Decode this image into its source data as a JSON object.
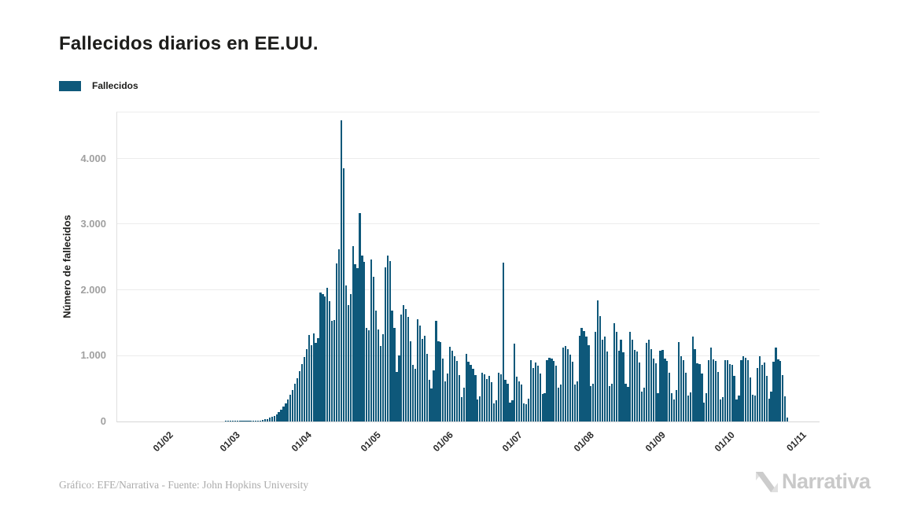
{
  "header": {
    "title": "Fallecidos diarios en EE.UU."
  },
  "legend": {
    "label": "Fallecidos",
    "swatch_color": "#0e587a"
  },
  "chart_data": {
    "type": "bar",
    "title": "Fallecidos diarios en EE.UU.",
    "xlabel": "",
    "ylabel": "Número de fallecidos",
    "ylim": [
      0,
      4730
    ],
    "grid": true,
    "legend_position": "top-left",
    "bar_color": "#0e587a",
    "series_name": "Fallecidos",
    "x_start_date": "22/01/2020",
    "frequency": "daily",
    "y_ticks": [
      {
        "value": 0,
        "label": "0"
      },
      {
        "value": 1000,
        "label": "1.000"
      },
      {
        "value": 2000,
        "label": "2.000"
      },
      {
        "value": 3000,
        "label": "3.000"
      },
      {
        "value": 4000,
        "label": "4.000"
      }
    ],
    "x_ticks": [
      {
        "label": "01/02",
        "day_offset": 10
      },
      {
        "label": "01/03",
        "day_offset": 39
      },
      {
        "label": "01/04",
        "day_offset": 70
      },
      {
        "label": "01/05",
        "day_offset": 100
      },
      {
        "label": "01/06",
        "day_offset": 131
      },
      {
        "label": "01/07",
        "day_offset": 161
      },
      {
        "label": "01/08",
        "day_offset": 192
      },
      {
        "label": "01/09",
        "day_offset": 223
      },
      {
        "label": "01/10",
        "day_offset": 253
      },
      {
        "label": "01/11",
        "day_offset": 284
      }
    ],
    "values": [
      0,
      0,
      0,
      0,
      0,
      0,
      0,
      0,
      0,
      0,
      0,
      0,
      0,
      0,
      0,
      0,
      0,
      0,
      0,
      0,
      0,
      0,
      0,
      0,
      0,
      0,
      0,
      0,
      0,
      0,
      0,
      0,
      0,
      0,
      0,
      1,
      1,
      1,
      1,
      1,
      1,
      2,
      4,
      3,
      5,
      4,
      7,
      6,
      9,
      12,
      17,
      23,
      31,
      42,
      55,
      68,
      85,
      110,
      141,
      177,
      223,
      272,
      333,
      402,
      485,
      572,
      663,
      762,
      872,
      982,
      1100,
      1320,
      1160,
      1340,
      1200,
      1270,
      1970,
      1940,
      1900,
      2035,
      1830,
      1530,
      1540,
      2410,
      2620,
      4591,
      3857,
      2070,
      1770,
      1940,
      2670,
      2400,
      2330,
      3176,
      2530,
      2430,
      1420,
      1390,
      2470,
      2200,
      1690,
      1400,
      1155,
      1324,
      2350,
      2530,
      2440,
      1687,
      1422,
      750,
      1008,
      1630,
      1772,
      1715,
      1595,
      1218,
      865,
      808,
      1552,
      1461,
      1263,
      1306,
      1035,
      638,
      500,
      774,
      1535,
      1223,
      1212,
      960,
      605,
      730,
      1134,
      1083,
      995,
      921,
      709,
      372,
      510,
      1030,
      906,
      868,
      800,
      710,
      330,
      380,
      740,
      720,
      650,
      690,
      600,
      270,
      320,
      740,
      720,
      2425,
      640,
      580,
      290,
      320,
      1180,
      680,
      610,
      560,
      270,
      260,
      350,
      930,
      810,
      900,
      850,
      730,
      420,
      430,
      940,
      970,
      960,
      920,
      850,
      510,
      560,
      1120,
      1150,
      1100,
      1020,
      910,
      560,
      610,
      1300,
      1420,
      1380,
      1290,
      1160,
      540,
      580,
      1360,
      1850,
      1600,
      1250,
      1290,
      1060,
      540,
      570,
      1500,
      1360,
      1080,
      1250,
      1050,
      580,
      530,
      1360,
      1240,
      1090,
      1070,
      900,
      450,
      510,
      1200,
      1240,
      1100,
      960,
      890,
      430,
      1080,
      1090,
      960,
      920,
      740,
      430,
      340,
      480,
      1210,
      990,
      940,
      740,
      390,
      440,
      1290,
      1100,
      890,
      880,
      730,
      290,
      430,
      940,
      1120,
      950,
      920,
      760,
      340,
      370,
      930,
      940,
      880,
      860,
      690,
      340,
      390,
      930,
      990,
      970,
      930,
      670,
      410,
      390,
      810,
      990,
      860,
      900,
      690,
      350,
      450,
      910,
      1130,
      950,
      920,
      710,
      380,
      60
    ]
  },
  "footer": {
    "credit": "Gráfico: EFE/Narrativa - Fuente: John Hopkins University",
    "logo_text": "Narrativa"
  }
}
